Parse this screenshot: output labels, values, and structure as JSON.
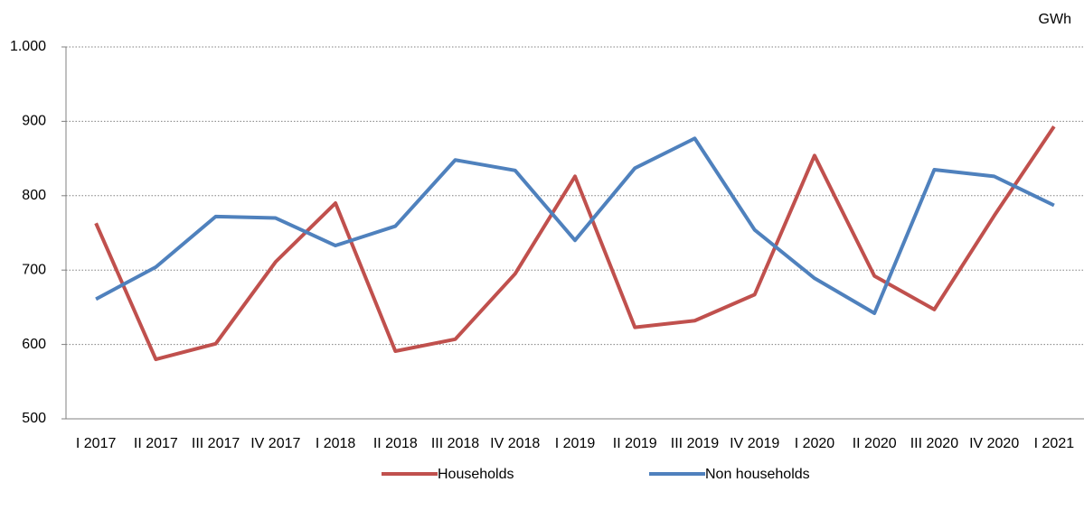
{
  "chart_data": {
    "type": "line",
    "unit_label": "GWh",
    "categories": [
      "I 2017",
      "II 2017",
      "III 2017",
      "IV 2017",
      "I 2018",
      "II 2018",
      "III 2018",
      "IV 2018",
      "I 2019",
      "II 2019",
      "III 2019",
      "IV 2019",
      "I 2020",
      "II 2020",
      "III 2020",
      "IV 2020",
      "I 2021"
    ],
    "series": [
      {
        "name": "Households",
        "color": "#c0504d",
        "values": [
          763,
          580,
          601,
          711,
          790,
          591,
          607,
          695,
          826,
          623,
          632,
          667,
          854,
          692,
          647,
          773,
          893
        ]
      },
      {
        "name": "Non households",
        "color": "#4f81bd",
        "values": [
          661,
          704,
          772,
          770,
          733,
          759,
          848,
          834,
          740,
          837,
          877,
          754,
          689,
          642,
          835,
          826,
          787
        ]
      }
    ],
    "ylim": [
      500,
      1000
    ],
    "yticks": [
      500,
      600,
      700,
      800,
      900,
      {
        "value": 1000,
        "label": "1.000"
      }
    ],
    "grid": true,
    "legend": "bottom"
  }
}
